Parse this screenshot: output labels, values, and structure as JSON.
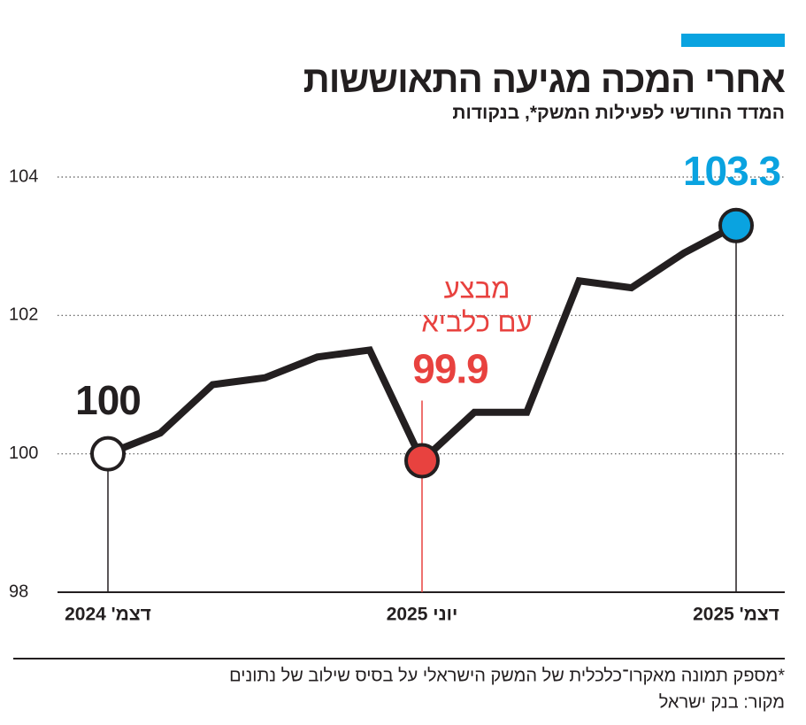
{
  "chart_data": {
    "type": "line",
    "title": "אחרי המכה מגיעה התאוששות",
    "subtitle": "המדד החודשי לפעילות המשק*, בנקודות",
    "categories": [
      "דצמ' 2024",
      null,
      null,
      null,
      null,
      null,
      "יוני 2025",
      null,
      null,
      null,
      null,
      null,
      "דצמ' 2025"
    ],
    "values": [
      100,
      100.3,
      101.0,
      101.1,
      101.4,
      101.5,
      99.9,
      100.6,
      100.6,
      102.5,
      102.4,
      102.9,
      103.3
    ],
    "value_labels": [
      "100",
      null,
      null,
      null,
      null,
      null,
      "99.9",
      null,
      null,
      null,
      null,
      null,
      "103.3"
    ],
    "color": "#231f20",
    "highlights": [
      {
        "index": 0,
        "color": "#ffffff",
        "label_color": "#231f20"
      },
      {
        "index": 6,
        "color": "#e8423f",
        "label_color": "#e8423f"
      },
      {
        "index": 12,
        "color": "#0aa3e0",
        "label_color": "#0aa3e0"
      }
    ],
    "annotation": {
      "index": 6,
      "lines": [
        "מבצע",
        "עם כלביא"
      ],
      "color": "#e8423f"
    },
    "ylim": [
      98,
      104
    ],
    "yticks": [
      98,
      100,
      102,
      104
    ],
    "grid": true,
    "footnote": "*מספק תמונה מאקרו־כלכלית של המשק הישראלי על בסיס שילוב של נתונים",
    "source": "מקור: בנק ישראל"
  }
}
